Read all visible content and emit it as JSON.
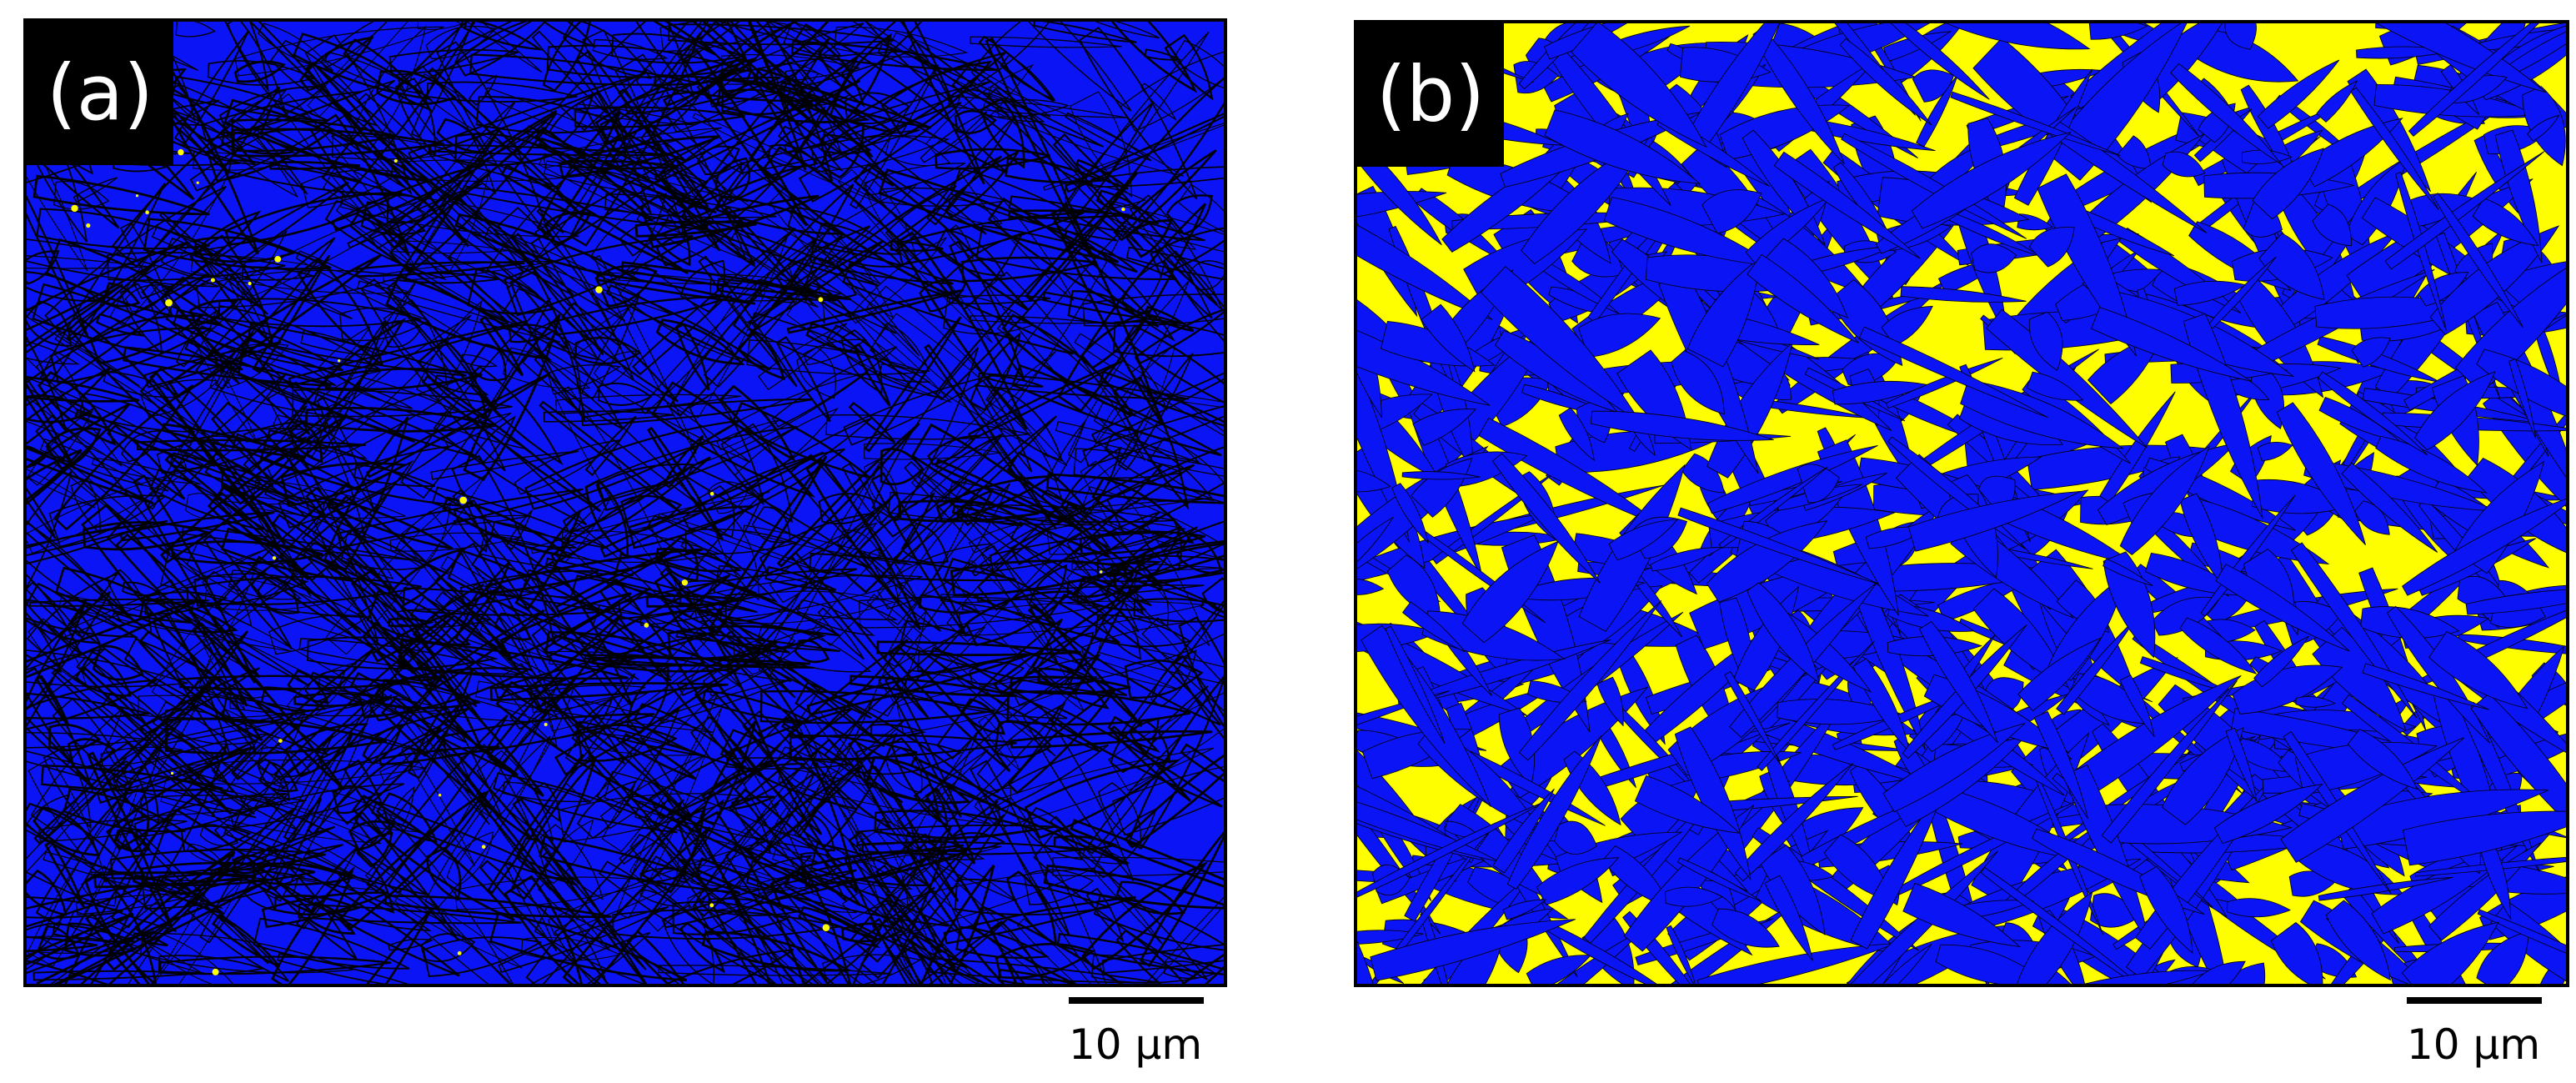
{
  "panels": [
    {
      "label": "(a)",
      "scale_bar": "10 μm",
      "colors": {
        "primary_phase": "#0a14f5",
        "secondary_phase": "#fffe00",
        "boundaries": "#000000"
      },
      "secondary_phase_fraction": 0.005
    },
    {
      "label": "(b)",
      "scale_bar": "10 μm",
      "colors": {
        "primary_phase": "#0a14f5",
        "secondary_phase": "#fffe00",
        "boundaries": "#000000"
      },
      "secondary_phase_fraction": 0.45
    }
  ]
}
